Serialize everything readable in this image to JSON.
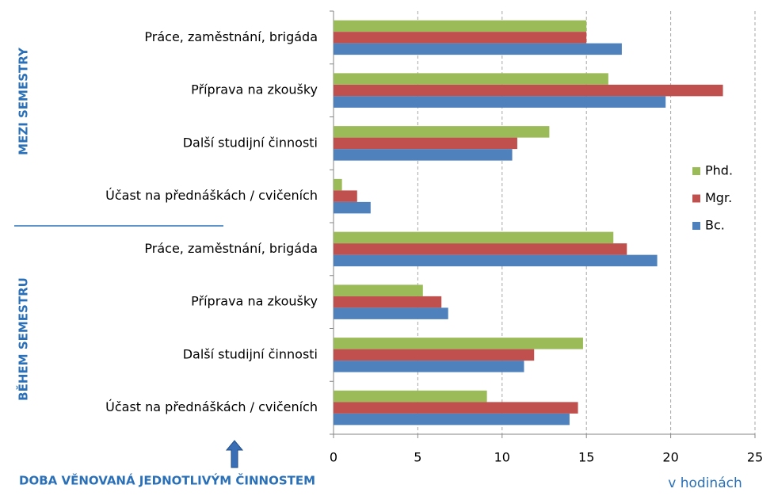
{
  "chart_data": {
    "type": "hbar",
    "categories": [
      "Práce, zaměstnání, brigáda",
      "Příprava na zkoušky",
      "Další studijní činnosti",
      "Účast na přednáškách / cvičeních",
      "Práce, zaměstnání, brigáda",
      "Příprava na zkoušky",
      "Další studijní činnosti",
      "Účast na přednáškách / cvičeních"
    ],
    "series": [
      {
        "name": "Phd.",
        "color": "#9bbb59",
        "values": [
          15.0,
          16.3,
          12.8,
          0.5,
          16.6,
          5.3,
          14.8,
          9.1
        ]
      },
      {
        "name": "Mgr.",
        "color": "#c0504d",
        "values": [
          15.0,
          23.1,
          10.9,
          1.4,
          17.4,
          6.4,
          11.9,
          14.5
        ]
      },
      {
        "name": "Bc.",
        "color": "#4f81bd",
        "values": [
          17.1,
          19.7,
          10.6,
          2.2,
          19.2,
          6.8,
          11.3,
          14.0
        ]
      }
    ],
    "group_labels": [
      "MEZI SEMESTRY",
      "BĚHEM SEMESTRU"
    ],
    "footnote": "DOBA VĚNOVANÁ JEDNOTLIVÝM ČINNOSTEM",
    "x_label": "v hodinách",
    "xlim": [
      0,
      25
    ],
    "xticks": [
      0,
      5,
      10,
      15,
      20,
      25
    ],
    "grid": true,
    "legend": "right"
  }
}
